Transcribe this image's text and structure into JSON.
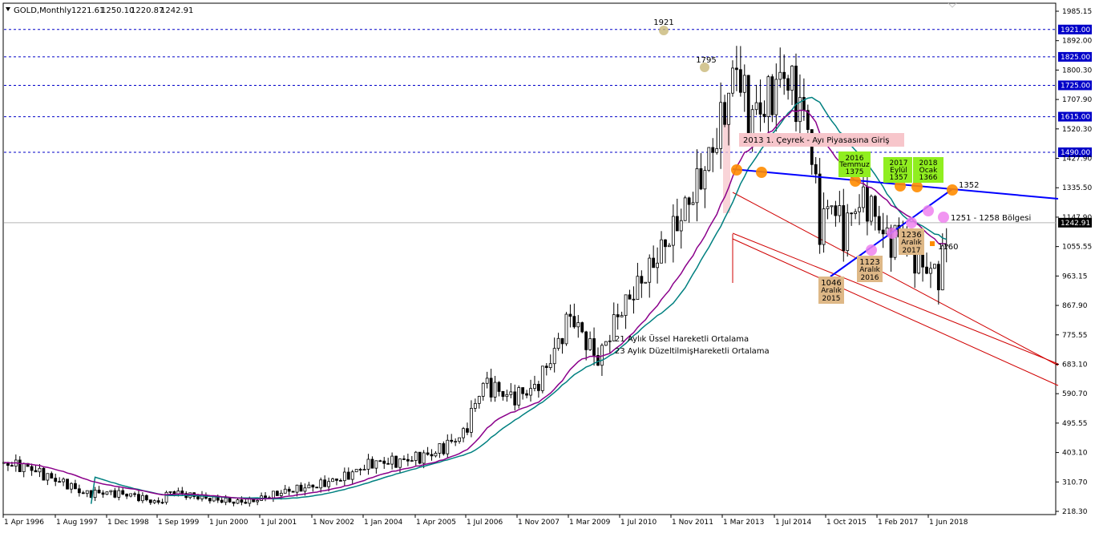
{
  "header": {
    "symbol": "GOLD,Monthly",
    "open": "1221.61",
    "high": "1250.10",
    "low": "1220.87",
    "close": "1242.91"
  },
  "colors": {
    "up": "#000000",
    "ema21": "#8b008b",
    "sma23": "#008080",
    "resistance": "#0000ff",
    "channel": "#d00000",
    "level_line": "#0000c8",
    "price_line": "#b4b4b4"
  },
  "chart_data": {
    "type": "candlestick",
    "instrument": "GOLD",
    "timeframe": "Monthly",
    "ylim": [
      218.33,
      1985.15
    ],
    "y_ticks": [
      "1985.15",
      "1892.00",
      "1800.30",
      "1707.90",
      "1520.30",
      "1427.90",
      "1335.50",
      "1147.90",
      "1055.55",
      "963.15",
      "867.90",
      "775.55",
      "683.10",
      "590.70",
      "495.55",
      "403.10",
      "310.70",
      "218.30"
    ],
    "x_ticks": [
      "1 Apr 1996",
      "1 Aug 1997",
      "1 Dec 1998",
      "1 Sep 1999",
      "1 Jun 2000",
      "1 Jul 2001",
      "1 Nov 2002",
      "1 Jan 2004",
      "1 Apr 2005",
      "1 Jul 2006",
      "1 Nov 2007",
      "1 Mar 2009",
      "1 Jul 2010",
      "1 Nov 2011",
      "1 Mar 2013",
      "1 Jul 2014",
      "1 Oct 2015",
      "1 Feb 2017",
      "1 Jun 2018"
    ],
    "horizontal_levels": [
      {
        "value": 1921.0,
        "label": "1921.00"
      },
      {
        "value": 1825.0,
        "label": "1825.00"
      },
      {
        "value": 1725.0,
        "label": "1725.00"
      },
      {
        "value": 1615.0,
        "label": "1615.00"
      },
      {
        "value": 1490.0,
        "label": "1490.00"
      }
    ],
    "current_price": {
      "value": 1242.91,
      "label": "1242.91"
    },
    "path": [
      [
        "1996-04",
        398
      ],
      [
        "1996-10",
        385
      ],
      [
        "1997-04",
        345
      ],
      [
        "1997-08",
        325
      ],
      [
        "1997-12",
        292
      ],
      [
        "1998-06",
        296
      ],
      [
        "1998-12",
        288
      ],
      [
        "1999-07",
        258
      ],
      [
        "1999-10",
        300
      ],
      [
        "2000-03",
        285
      ],
      [
        "2000-09",
        272
      ],
      [
        "2001-03",
        262
      ],
      [
        "2001-07",
        268
      ],
      [
        "2002-03",
        300
      ],
      [
        "2002-11",
        320
      ],
      [
        "2003-06",
        350
      ],
      [
        "2004-01",
        400
      ],
      [
        "2004-08",
        405
      ],
      [
        "2005-04",
        430
      ],
      [
        "2005-12",
        500
      ],
      [
        "2006-05",
        680
      ],
      [
        "2006-12",
        630
      ],
      [
        "2007-06",
        660
      ],
      [
        "2007-11",
        790
      ],
      [
        "2008-03",
        920
      ],
      [
        "2008-10",
        760
      ],
      [
        "2009-03",
        920
      ],
      [
        "2009-12",
        1100
      ],
      [
        "2010-06",
        1240
      ],
      [
        "2010-12",
        1400
      ],
      [
        "2011-04",
        1540
      ],
      [
        "2011-09",
        1800
      ],
      [
        "2011-12",
        1620
      ],
      [
        "2012-04",
        1650
      ],
      [
        "2012-09",
        1770
      ],
      [
        "2012-12",
        1680
      ],
      [
        "2013-03",
        1590
      ],
      [
        "2013-06",
        1230
      ],
      [
        "2013-09",
        1320
      ],
      [
        "2013-12",
        1210
      ],
      [
        "2014-03",
        1300
      ],
      [
        "2014-06",
        1320
      ],
      [
        "2014-11",
        1180
      ],
      [
        "2015-03",
        1200
      ],
      [
        "2015-07",
        1100
      ],
      [
        "2015-12",
        1060
      ],
      [
        "2016-03",
        1230
      ],
      [
        "2016-07",
        1350
      ],
      [
        "2016-12",
        1150
      ],
      [
        "2017-03",
        1250
      ],
      [
        "2017-09",
        1290
      ],
      [
        "2018-01",
        1340
      ],
      [
        "2018-04",
        1320
      ],
      [
        "2018-08",
        1200
      ],
      [
        "2018-11",
        1242
      ]
    ],
    "price_peak_labels": [
      {
        "text": "1921",
        "date": "2011-08",
        "value": 1921
      },
      {
        "text": "1795",
        "date": "2012-09",
        "value": 1795
      }
    ],
    "annotations": [
      {
        "text": "2013 1. Çeyrek - Ayı Piyasasına Giriş",
        "bg": "#f7c6cb"
      },
      {
        "text": [
          "2016",
          "Temmuz",
          "1375"
        ],
        "bg": "#90ee20"
      },
      {
        "text": [
          "2017",
          "Eylül",
          "1357"
        ],
        "bg": "#90ee20"
      },
      {
        "text": [
          "2018",
          "Ocak",
          "1366"
        ],
        "bg": "#90ee20"
      },
      {
        "text": [
          "1046",
          "Aralık",
          "2015"
        ],
        "bg": "#deb887"
      },
      {
        "text": [
          "1123",
          "Aralık",
          "2016"
        ],
        "bg": "#deb887"
      },
      {
        "text": [
          "1236",
          "Aralık",
          "2017"
        ],
        "bg": "#deb887"
      },
      {
        "text": "1352"
      },
      {
        "text": "1251 - 1258 Bölgesi"
      },
      {
        "text": "1160"
      }
    ],
    "legend": [
      {
        "text": "21 Aylık Üssel Hareketli Ortalama",
        "color": "#8b008b"
      },
      {
        "text": "23 Aylık DüzeltilmişHareketli Ortalama",
        "color": "#008080"
      }
    ]
  }
}
